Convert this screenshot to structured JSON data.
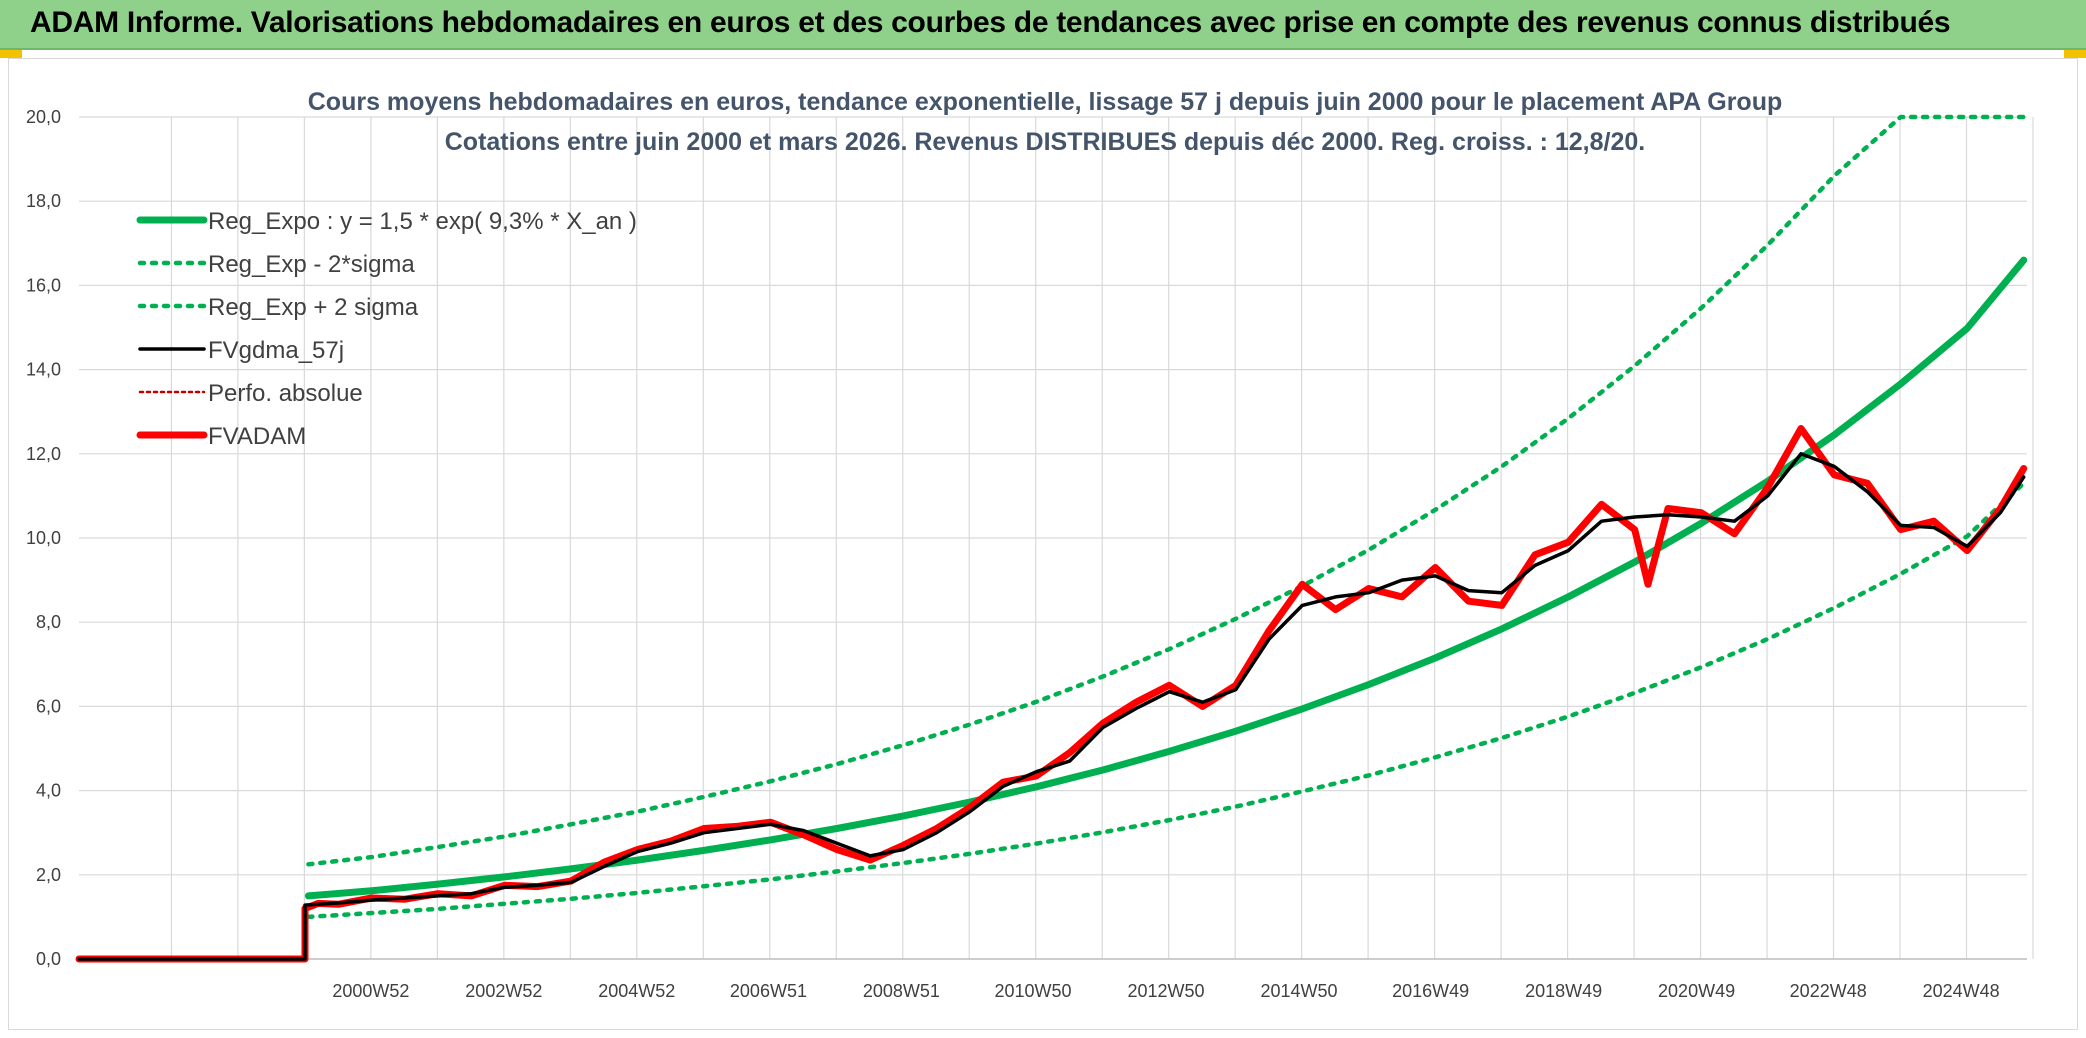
{
  "banner": {
    "title": "ADAM Informe. Valorisations hebdomadaires en euros et des courbes de tendances avec prise en compte des revenus connus distribués"
  },
  "colors": {
    "banner_bg": "#8fd18b",
    "accent_yellow": "#f2c200",
    "regression": "#00b050",
    "fvgdma": "#000000",
    "fvadam": "#ff0000",
    "perfo": "#c00000",
    "gridline": "#d9d9d9",
    "title_text": "#44546a"
  },
  "chart_data": {
    "type": "line",
    "title": [
      "Cours moyens hebdomadaires en euros, tendance exponentielle, lissage 57 j depuis juin 2000 pour le placement APA Group",
      "Cotations entre juin 2000 et mars 2026. Revenus DISTRIBUES depuis déc 2000. Reg. croiss. : 12,8/20."
    ],
    "xlabel": "",
    "ylabel": "",
    "ylim": [
      0,
      20
    ],
    "xlim": [
      1996.6,
      2025.9
    ],
    "grid": true,
    "legend_position": "top-left",
    "y_ticks": [
      "0,0",
      "2,0",
      "4,0",
      "6,0",
      "8,0",
      "10,0",
      "12,0",
      "14,0",
      "16,0",
      "18,0",
      "20,0"
    ],
    "x_ticks": [
      {
        "label": "2000W52",
        "x": 2000.99
      },
      {
        "label": "2002W52",
        "x": 2002.99
      },
      {
        "label": "2004W52",
        "x": 2004.99
      },
      {
        "label": "2006W51",
        "x": 2006.97
      },
      {
        "label": "2008W51",
        "x": 2008.97
      },
      {
        "label": "2010W50",
        "x": 2010.95
      },
      {
        "label": "2012W50",
        "x": 2012.95
      },
      {
        "label": "2014W50",
        "x": 2014.95
      },
      {
        "label": "2016W49",
        "x": 2016.93
      },
      {
        "label": "2018W49",
        "x": 2018.93
      },
      {
        "label": "2020W49",
        "x": 2020.93
      },
      {
        "label": "2022W48",
        "x": 2022.91
      },
      {
        "label": "2024W48",
        "x": 2024.91
      }
    ],
    "series": [
      {
        "name": "Reg_Expo : y = 1,5 * exp( 9,3% *  X_an )",
        "style": "solid-thick",
        "color": "#00b050",
        "x": [
          2000.05,
          2001,
          2002,
          2003,
          2004,
          2005,
          2006,
          2007,
          2008,
          2009,
          2010,
          2011,
          2012,
          2013,
          2014,
          2015,
          2016,
          2017,
          2018,
          2019,
          2020,
          2021,
          2022,
          2023,
          2024,
          2025,
          2025.85
        ],
        "y": [
          1.5,
          1.62,
          1.78,
          1.95,
          2.14,
          2.35,
          2.58,
          2.83,
          3.1,
          3.4,
          3.73,
          4.09,
          4.49,
          4.93,
          5.41,
          5.94,
          6.52,
          7.15,
          7.84,
          8.6,
          9.43,
          10.35,
          11.35,
          12.45,
          13.66,
          14.98,
          16.6
        ]
      },
      {
        "name": "Reg_Exp - 2*sigma",
        "style": "dotted",
        "color": "#00b050",
        "x": [
          2000.05,
          2001,
          2002,
          2003,
          2004,
          2005,
          2006,
          2007,
          2008,
          2009,
          2010,
          2011,
          2012,
          2013,
          2014,
          2015,
          2016,
          2017,
          2018,
          2019,
          2020,
          2021,
          2022,
          2023,
          2024,
          2025,
          2025.85
        ],
        "y": [
          1.0,
          1.09,
          1.19,
          1.31,
          1.43,
          1.57,
          1.73,
          1.89,
          2.08,
          2.28,
          2.5,
          2.74,
          3.01,
          3.3,
          3.62,
          3.98,
          4.36,
          4.79,
          5.25,
          5.76,
          6.32,
          6.93,
          7.6,
          8.34,
          9.15,
          10.04,
          11.3
        ]
      },
      {
        "name": "Reg_Exp + 2 sigma",
        "style": "dotted",
        "color": "#00b050",
        "x": [
          2000.05,
          2001,
          2002,
          2003,
          2004,
          2005,
          2006,
          2007,
          2008,
          2009,
          2010,
          2011,
          2012,
          2013,
          2014,
          2015,
          2016,
          2017,
          2018,
          2019,
          2020,
          2021,
          2022,
          2023,
          2024,
          2025,
          2025.85
        ],
        "y": [
          2.25,
          2.42,
          2.66,
          2.91,
          3.2,
          3.5,
          3.85,
          4.22,
          4.63,
          5.08,
          5.57,
          6.11,
          6.71,
          7.36,
          8.08,
          8.86,
          9.72,
          10.67,
          11.7,
          12.84,
          14.09,
          15.46,
          16.96,
          18.6,
          20.0,
          20.0,
          20.0
        ]
      },
      {
        "name": "FVgdma_57j",
        "style": "solid",
        "color": "#000000",
        "x": [
          1996.6,
          2000.0,
          2000.0,
          2000.2,
          2000.5,
          2001.0,
          2001.5,
          2002.0,
          2002.5,
          2003.0,
          2003.5,
          2004.0,
          2004.5,
          2005.0,
          2005.5,
          2006.0,
          2006.5,
          2007.0,
          2007.5,
          2008.0,
          2008.5,
          2009.0,
          2009.5,
          2010.0,
          2010.5,
          2011.0,
          2011.5,
          2012.0,
          2012.5,
          2013.0,
          2013.5,
          2014.0,
          2014.5,
          2015.0,
          2015.5,
          2016.0,
          2016.5,
          2017.0,
          2017.5,
          2018.0,
          2018.5,
          2019.0,
          2019.5,
          2020.0,
          2020.5,
          2021.0,
          2021.5,
          2022.0,
          2022.5,
          2023.0,
          2023.5,
          2024.0,
          2024.5,
          2025.0,
          2025.5,
          2025.85
        ],
        "y": [
          0.0,
          0.0,
          1.28,
          1.3,
          1.33,
          1.4,
          1.45,
          1.5,
          1.55,
          1.7,
          1.75,
          1.82,
          2.2,
          2.55,
          2.75,
          3.0,
          3.1,
          3.2,
          3.05,
          2.75,
          2.45,
          2.6,
          3.0,
          3.5,
          4.1,
          4.45,
          4.7,
          5.5,
          5.95,
          6.35,
          6.1,
          6.4,
          7.6,
          8.4,
          8.6,
          8.7,
          9.0,
          9.1,
          8.75,
          8.7,
          9.35,
          9.7,
          10.4,
          10.5,
          10.55,
          10.5,
          10.4,
          11.0,
          12.0,
          11.7,
          11.1,
          10.3,
          10.25,
          9.8,
          10.6,
          11.45
        ]
      },
      {
        "name": "Perfo. absolue",
        "style": "dotted-thin",
        "color": "#c00000",
        "x": [],
        "y": []
      },
      {
        "name": "FVADAM",
        "style": "solid-thick",
        "color": "#ff0000",
        "x": [
          1996.6,
          2000.0,
          2000.0,
          2000.2,
          2000.5,
          2001.0,
          2001.5,
          2002.0,
          2002.5,
          2003.0,
          2003.5,
          2004.0,
          2004.5,
          2005.0,
          2005.5,
          2006.0,
          2006.5,
          2007.0,
          2007.5,
          2008.0,
          2008.5,
          2009.0,
          2009.5,
          2010.0,
          2010.5,
          2011.0,
          2011.5,
          2012.0,
          2012.5,
          2013.0,
          2013.5,
          2014.0,
          2014.5,
          2015.0,
          2015.5,
          2016.0,
          2016.5,
          2017.0,
          2017.5,
          2018.0,
          2018.5,
          2019.0,
          2019.5,
          2020.0,
          2020.2,
          2020.5,
          2021.0,
          2021.5,
          2022.0,
          2022.5,
          2023.0,
          2023.5,
          2024.0,
          2024.5,
          2025.0,
          2025.5,
          2025.85
        ],
        "y": [
          0.0,
          0.0,
          1.2,
          1.32,
          1.3,
          1.45,
          1.42,
          1.55,
          1.5,
          1.75,
          1.72,
          1.85,
          2.3,
          2.6,
          2.8,
          3.1,
          3.15,
          3.25,
          2.95,
          2.6,
          2.35,
          2.7,
          3.1,
          3.6,
          4.2,
          4.35,
          4.9,
          5.6,
          6.1,
          6.5,
          6.0,
          6.5,
          7.8,
          8.9,
          8.3,
          8.8,
          8.6,
          9.3,
          8.5,
          8.4,
          9.6,
          9.9,
          10.8,
          10.2,
          8.9,
          10.7,
          10.6,
          10.1,
          11.2,
          12.6,
          11.5,
          11.3,
          10.2,
          10.4,
          9.7,
          10.7,
          11.65
        ]
      }
    ]
  }
}
